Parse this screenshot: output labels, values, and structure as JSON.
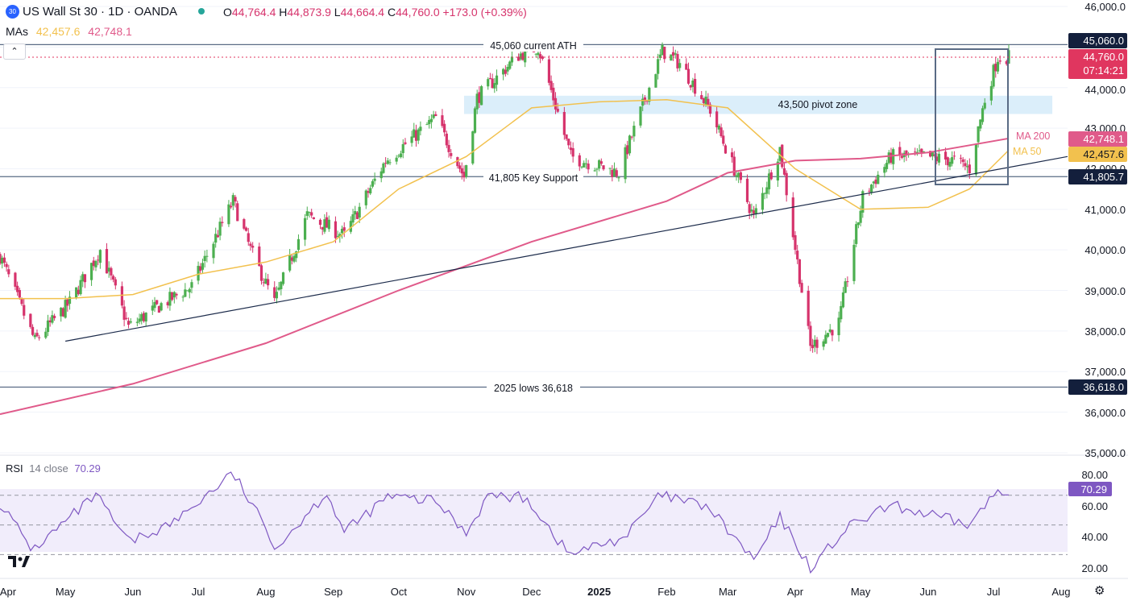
{
  "header": {
    "badge": "30",
    "title": "US Wall St 30 · 1D · OANDA",
    "ohlc": [
      {
        "k": "O",
        "v": "44,764.4"
      },
      {
        "k": "H",
        "v": "44,873.9"
      },
      {
        "k": "L",
        "v": "44,664.4"
      },
      {
        "k": "C",
        "v": "44,760.0"
      }
    ],
    "change": "+173.0 (+0.39%)",
    "mas_label": "MAs",
    "ma50_value": "42,457.6",
    "ma200_value": "42,748.1",
    "collapse_symbol": "⌃"
  },
  "colors": {
    "up": "#26a69a",
    "down": "#ef5350",
    "candle_up": "#4caf50",
    "candle_down": "#d6336c",
    "ma50": "#f2c14e",
    "ma200": "#e05a8a",
    "trendline": "#1b2a4a",
    "level": "#5a6b85",
    "zone": "#dbeefa",
    "rsi": "#7e57c2",
    "dark_badge": "#131f3c",
    "price_badge": "#e0365f"
  },
  "price_axis": {
    "ticks": [
      "46,000.0",
      "44,000.0",
      "43,000.0",
      "42,000.0",
      "41,000.0",
      "40,000.0",
      "39,000.0",
      "38,000.0",
      "37,000.0",
      "36,000.0",
      "35,000.0"
    ],
    "badges": {
      "ath": "45,060.0",
      "last": "44,760.0",
      "countdown": "07:14:21",
      "ma200": "42,748.1",
      "ma50": "42,457.6",
      "support": "41,805.7",
      "lows": "36,618.0"
    }
  },
  "rsi": {
    "label": "RSI",
    "params": "14 close",
    "value": "70.29",
    "ticks": [
      "80.00",
      "60.00",
      "40.00",
      "20.00"
    ]
  },
  "annotations": {
    "ath": "45,060 current ATH",
    "pivot": "43,500 pivot zone",
    "support": "41,805 Key Support",
    "lows": "2025 lows 36,618",
    "ma200": "MA 200",
    "ma50": "MA 50"
  },
  "time_axis": [
    {
      "label": "Apr",
      "bold": false
    },
    {
      "label": "May",
      "bold": false
    },
    {
      "label": "Jun",
      "bold": false
    },
    {
      "label": "Jul",
      "bold": false
    },
    {
      "label": "Aug",
      "bold": false
    },
    {
      "label": "Sep",
      "bold": false
    },
    {
      "label": "Oct",
      "bold": false
    },
    {
      "label": "Nov",
      "bold": false
    },
    {
      "label": "Dec",
      "bold": false
    },
    {
      "label": "2025",
      "bold": true
    },
    {
      "label": "Feb",
      "bold": false
    },
    {
      "label": "Mar",
      "bold": false
    },
    {
      "label": "Apr",
      "bold": false
    },
    {
      "label": "May",
      "bold": false
    },
    {
      "label": "Jun",
      "bold": false
    },
    {
      "label": "Jul",
      "bold": false
    },
    {
      "label": "Aug",
      "bold": false
    }
  ],
  "chart_data": {
    "type": "candlestick",
    "interval": "1D",
    "x_range": [
      "2024-04-01",
      "2025-08-04"
    ],
    "y_range": [
      35000,
      46000
    ],
    "levels": {
      "ath": 45060,
      "support": 41805.7,
      "lows": 36618,
      "pivot_zone": [
        43350,
        43800
      ]
    },
    "close_path": [
      [
        "2024-04-01",
        39850
      ],
      [
        "2024-04-17",
        37750
      ],
      [
        "2024-05-03",
        38700
      ],
      [
        "2024-05-17",
        40000
      ],
      [
        "2024-05-30",
        38100
      ],
      [
        "2024-06-14",
        38650
      ],
      [
        "2024-06-28",
        39100
      ],
      [
        "2024-07-17",
        41200
      ],
      [
        "2024-07-25",
        40000
      ],
      [
        "2024-08-05",
        38700
      ],
      [
        "2024-08-20",
        40850
      ],
      [
        "2024-09-06",
        40350
      ],
      [
        "2024-09-25",
        42200
      ],
      [
        "2024-10-18",
        43250
      ],
      [
        "2024-10-31",
        41800
      ],
      [
        "2024-11-06",
        43750
      ],
      [
        "2024-11-25",
        44800
      ],
      [
        "2024-12-04",
        45000
      ],
      [
        "2024-12-19",
        42300
      ],
      [
        "2025-01-10",
        41900
      ],
      [
        "2025-01-30",
        44900
      ],
      [
        "2025-02-07",
        44600
      ],
      [
        "2025-02-21",
        43450
      ],
      [
        "2025-03-13",
        40800
      ],
      [
        "2025-03-25",
        42500
      ],
      [
        "2025-04-08",
        37600
      ],
      [
        "2025-04-21",
        38200
      ],
      [
        "2025-05-02",
        41300
      ],
      [
        "2025-05-15",
        42300
      ],
      [
        "2025-05-30",
        42300
      ],
      [
        "2025-06-13",
        42200
      ],
      [
        "2025-06-20",
        42000
      ],
      [
        "2025-06-27",
        43700
      ],
      [
        "2025-07-03",
        44750
      ],
      [
        "2025-07-08",
        44760
      ]
    ],
    "ma50_path": [
      [
        "2024-04-01",
        38800
      ],
      [
        "2024-05-01",
        38800
      ],
      [
        "2024-06-01",
        38900
      ],
      [
        "2024-07-01",
        39400
      ],
      [
        "2024-08-01",
        39700
      ],
      [
        "2024-09-01",
        40200
      ],
      [
        "2024-10-01",
        41500
      ],
      [
        "2024-11-01",
        42300
      ],
      [
        "2024-12-01",
        43500
      ],
      [
        "2025-01-01",
        43650
      ],
      [
        "2025-02-01",
        43700
      ],
      [
        "2025-03-01",
        43500
      ],
      [
        "2025-04-01",
        42000
      ],
      [
        "2025-05-01",
        41000
      ],
      [
        "2025-06-01",
        41050
      ],
      [
        "2025-06-20",
        41500
      ],
      [
        "2025-07-08",
        42457.6
      ]
    ],
    "ma200_path": [
      [
        "2024-04-01",
        35950
      ],
      [
        "2024-06-01",
        36700
      ],
      [
        "2024-08-01",
        37700
      ],
      [
        "2024-10-01",
        39000
      ],
      [
        "2024-12-01",
        40200
      ],
      [
        "2025-02-01",
        41200
      ],
      [
        "2025-03-01",
        41900
      ],
      [
        "2025-04-01",
        42200
      ],
      [
        "2025-05-01",
        42250
      ],
      [
        "2025-06-01",
        42400
      ],
      [
        "2025-07-08",
        42748.1
      ]
    ],
    "trendline": [
      [
        "2024-05-01",
        37750
      ],
      [
        "2025-08-04",
        42300
      ]
    ],
    "rsi_path": [
      [
        "2024-04-01",
        65
      ],
      [
        "2024-04-16",
        33
      ],
      [
        "2024-05-15",
        70
      ],
      [
        "2024-05-30",
        38
      ],
      [
        "2024-06-20",
        52
      ],
      [
        "2024-07-17",
        85
      ],
      [
        "2024-08-06",
        35
      ],
      [
        "2024-08-29",
        72
      ],
      [
        "2024-09-06",
        45
      ],
      [
        "2024-09-26",
        69
      ],
      [
        "2024-10-18",
        66
      ],
      [
        "2024-11-01",
        45
      ],
      [
        "2024-11-11",
        70
      ],
      [
        "2024-11-29",
        68
      ],
      [
        "2024-12-18",
        30
      ],
      [
        "2025-01-13",
        42
      ],
      [
        "2025-01-29",
        70
      ],
      [
        "2025-02-20",
        62
      ],
      [
        "2025-03-13",
        26
      ],
      [
        "2025-03-25",
        55
      ],
      [
        "2025-04-08",
        21
      ],
      [
        "2025-04-25",
        48
      ],
      [
        "2025-05-15",
        63
      ],
      [
        "2025-06-20",
        50
      ],
      [
        "2025-06-30",
        68
      ],
      [
        "2025-07-03",
        73
      ],
      [
        "2025-07-08",
        70.29
      ]
    ],
    "rsi_range": [
      15,
      90
    ],
    "rsi_bands": [
      70,
      50,
      30
    ]
  }
}
